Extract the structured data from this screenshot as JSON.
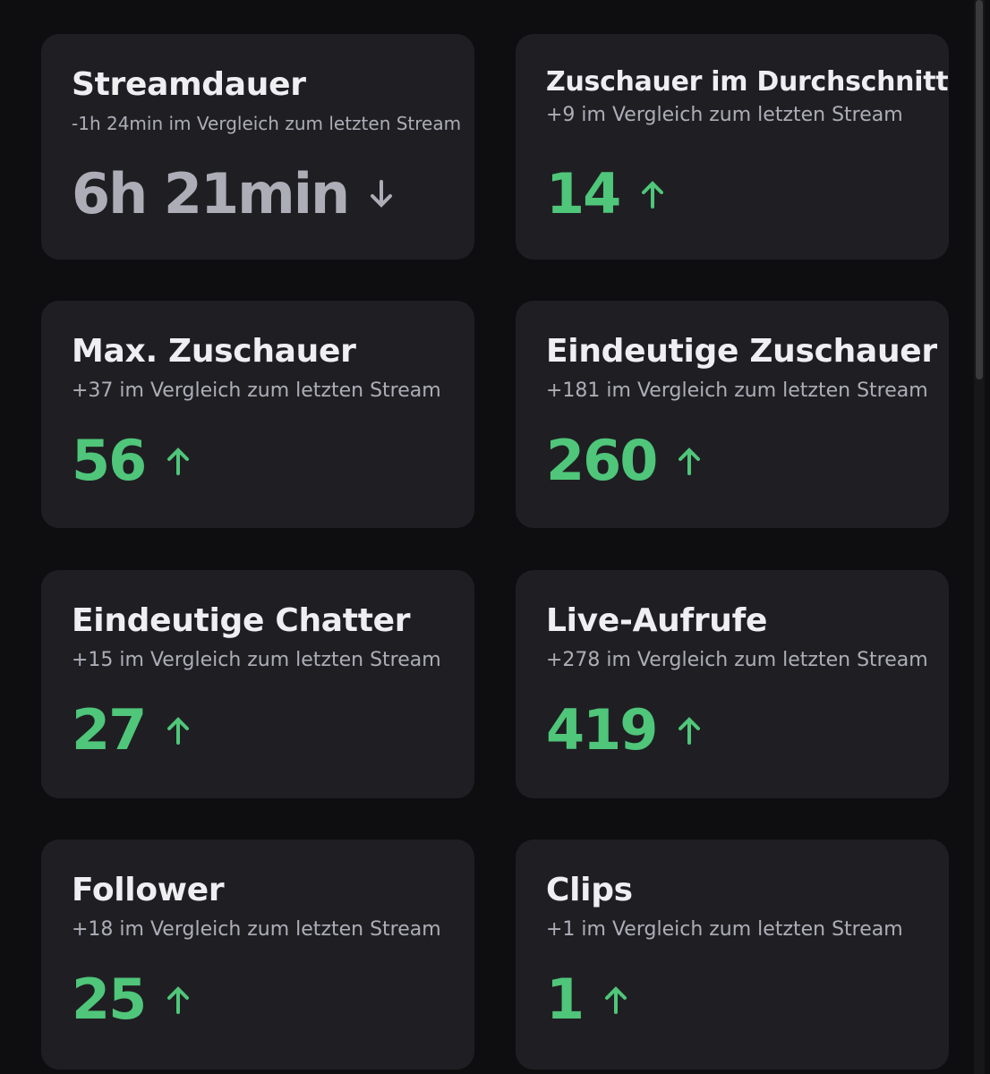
{
  "cards": [
    {
      "title": "Streamdauer",
      "subtitle": "-1h 24min im Vergleich zum letzten Stream",
      "value": "6h 21min"
    },
    {
      "title": "Zuschauer im Durchschnitt",
      "subtitle": "+9 im Vergleich zum letzten Stream",
      "value": 14
    },
    {
      "title": "Max. Zuschauer",
      "subtitle": "+37 im Vergleich zum letzten Stream",
      "value": 56
    },
    {
      "title": "Eindeutige Zuschauer",
      "subtitle": "+181 im Vergleich zum letzten Stream",
      "value": 260
    },
    {
      "title": "Eindeutige Chatter",
      "subtitle": "+15 im Vergleich zum letzten Stream",
      "value": 27
    },
    {
      "title": "Live-Aufrufe",
      "subtitle": "+278 im Vergleich zum letzten Stream",
      "value": 419
    },
    {
      "title": "Follower",
      "subtitle": "+18 im Vergleich zum letzten Stream",
      "value": 25
    },
    {
      "title": "Clips",
      "subtitle": "+1 im Vergleich zum letzten Stream",
      "value": 1
    }
  ]
}
